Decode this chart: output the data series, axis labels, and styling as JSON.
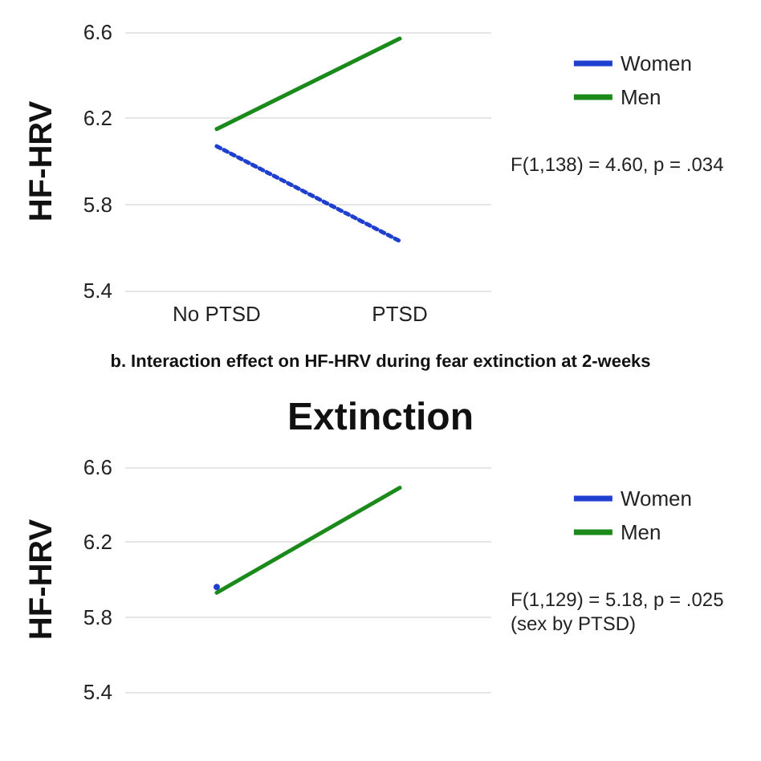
{
  "chart_data": [
    {
      "type": "line",
      "ylabel": "HF-HRV",
      "categories": [
        "No PTSD",
        "PTSD"
      ],
      "ylim": [
        5.4,
        6.6
      ],
      "yticks": [
        5.4,
        5.8,
        6.2,
        6.6
      ],
      "grid": "y",
      "legend": "right",
      "marker": "none",
      "series": [
        {
          "name": "Women",
          "color": "#1f3fcf",
          "line_style": "dotted",
          "values": [
            6.07,
            5.63
          ]
        },
        {
          "name": "Men",
          "color": "#1a8a1a",
          "line_style": "solid",
          "values": [
            6.15,
            6.57
          ]
        }
      ],
      "annotations": [
        "F(1,138) = 4.60, p = .034"
      ]
    },
    {
      "type": "line",
      "subtitle": "b. Interaction effect on HF-HRV during fear extinction at 2-weeks",
      "title": "Extinction",
      "ylabel": "HF-HRV",
      "categories": [
        null,
        null
      ],
      "ylim": [
        5.4,
        6.6
      ],
      "yticks": [
        5.4,
        5.8,
        6.2,
        6.6
      ],
      "grid": "y",
      "legend": "right",
      "series": [
        {
          "name": "Women",
          "color": "#1f3fcf",
          "line_style": "dotted",
          "marker": "circle",
          "values": [
            5.96,
            null
          ]
        },
        {
          "name": "Men",
          "color": "#1a8a1a",
          "line_style": "solid",
          "values": [
            5.93,
            6.49
          ]
        }
      ],
      "annotations": [
        "F(1,129) = 5.18, p = .025 (sex by PTSD)"
      ]
    }
  ]
}
